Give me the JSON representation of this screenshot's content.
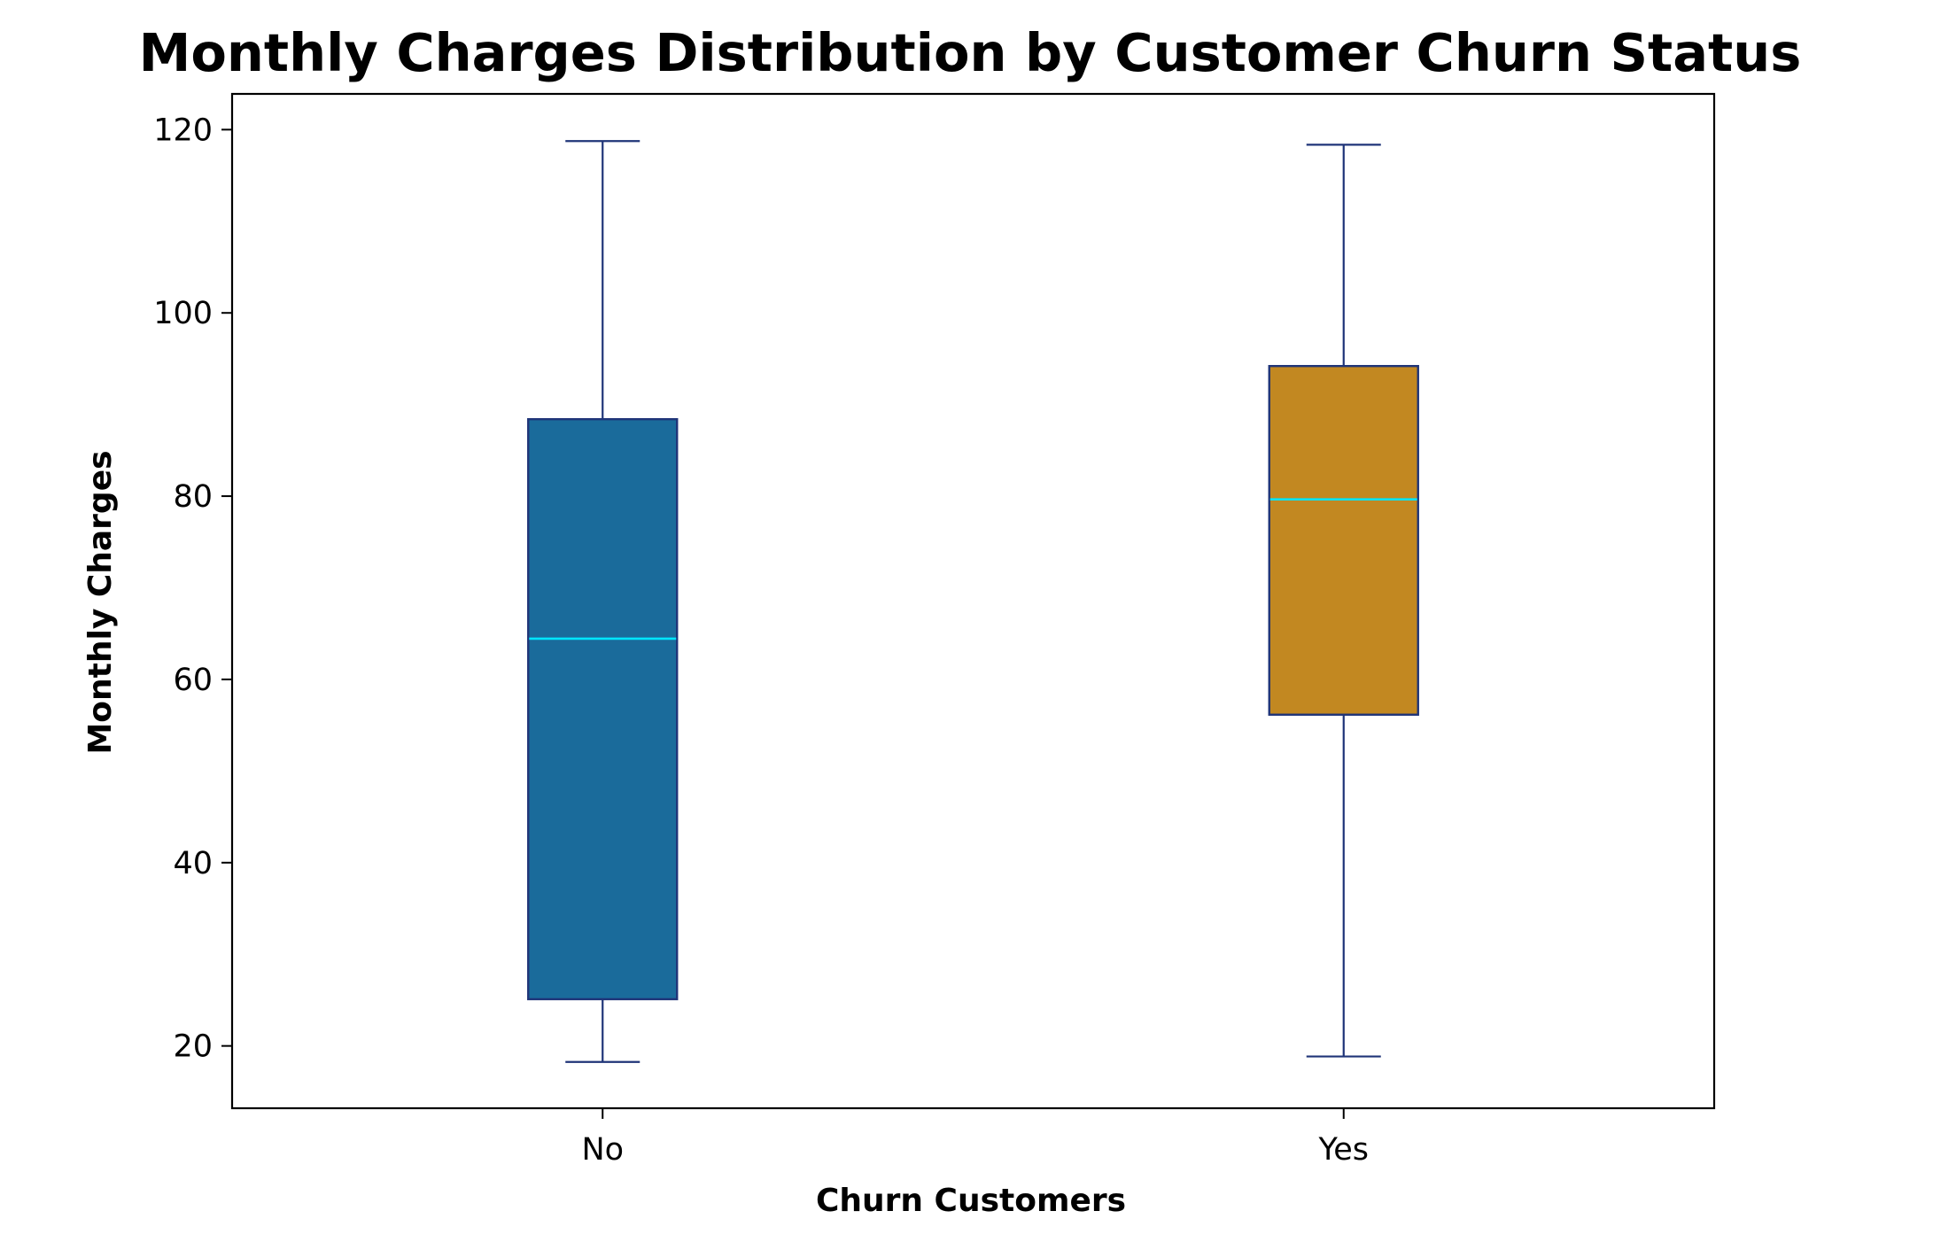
{
  "chart_data": {
    "type": "box",
    "title": "Monthly Charges Distribution by Customer Churn Status",
    "xlabel": "Churn Customers",
    "ylabel": "Monthly Charges",
    "ylim": [
      13.2,
      123.9
    ],
    "yticks": [
      20,
      40,
      60,
      80,
      100,
      120
    ],
    "categories": [
      "No",
      "Yes"
    ],
    "boxes": [
      {
        "category": "No",
        "whisker_low": 18.25,
        "q1": 25.1,
        "median": 64.45,
        "q3": 88.4,
        "whisker_high": 118.75,
        "fill": "#1a6b9b"
      },
      {
        "category": "Yes",
        "whisker_low": 18.85,
        "q1": 56.15,
        "median": 79.65,
        "q3": 94.2,
        "whisker_high": 118.35,
        "fill": "#c28821"
      }
    ],
    "edge_color": "#1f3478",
    "median_color": "#00e5ff",
    "grid": false,
    "legend": "none"
  }
}
